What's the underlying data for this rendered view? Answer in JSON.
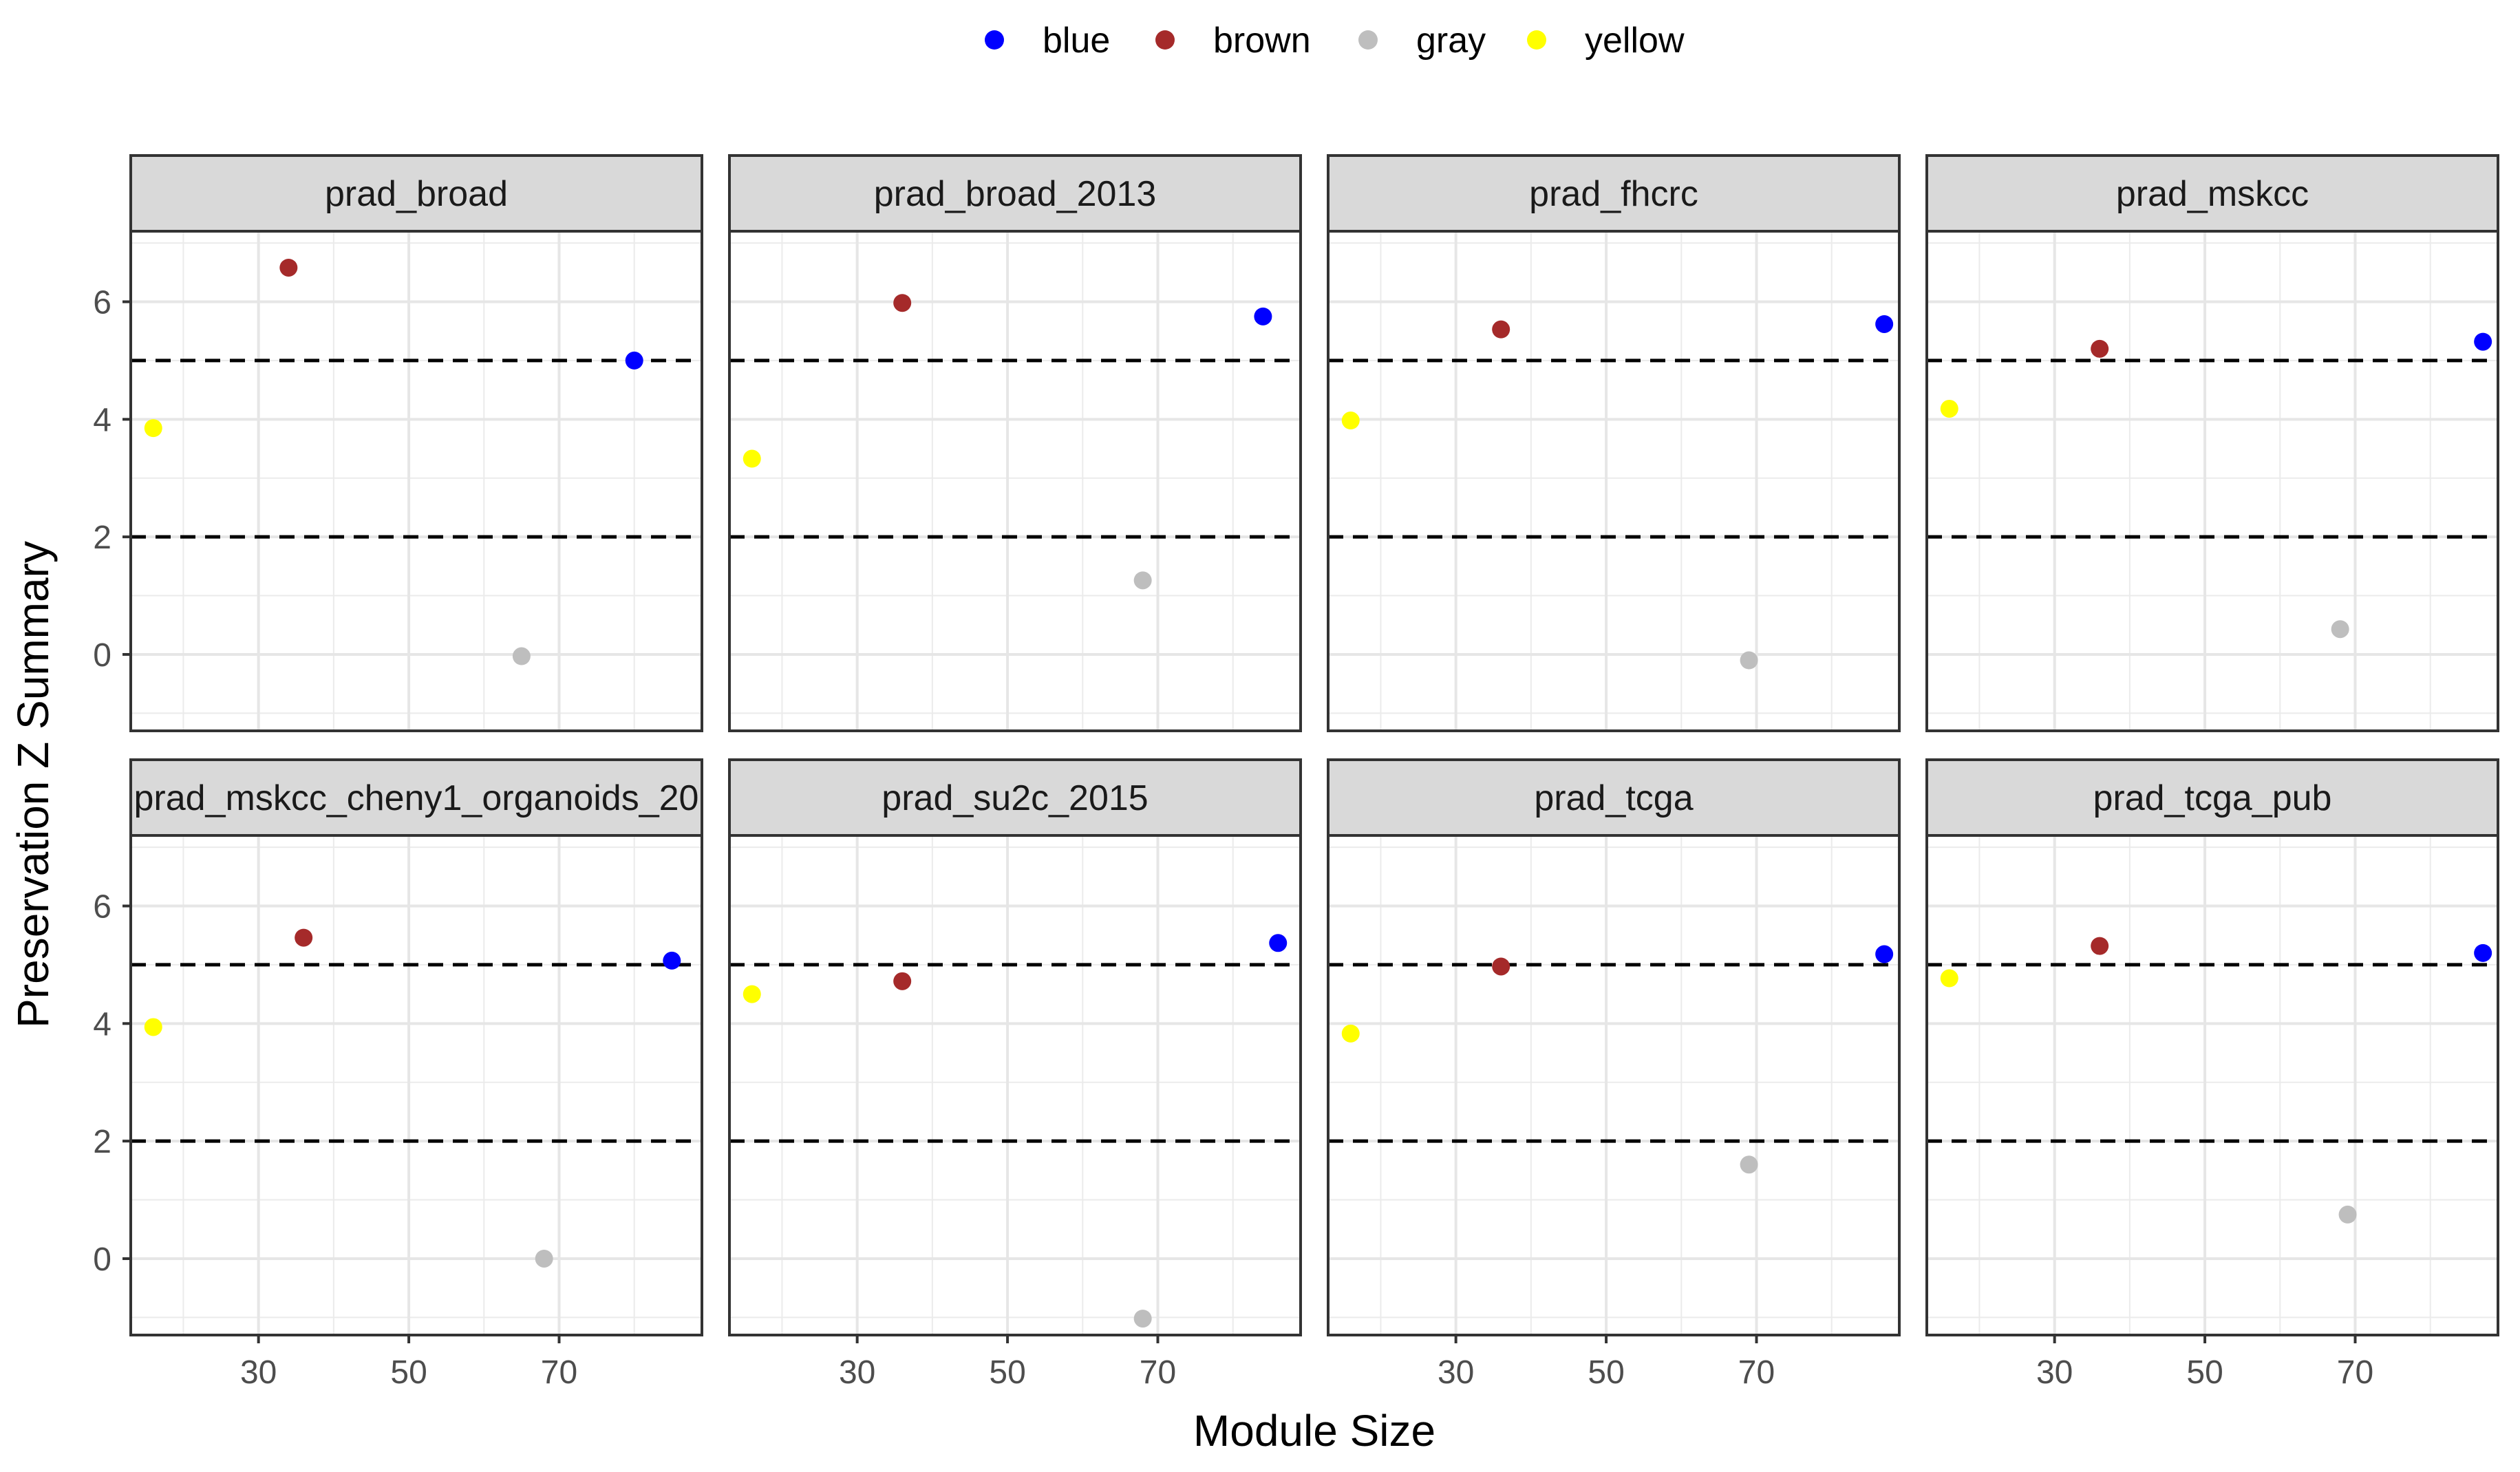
{
  "chart_data": {
    "type": "scatter",
    "facets": [
      "prad_broad",
      "prad_broad_2013",
      "prad_fhcrc",
      "prad_mskcc",
      "prad_mskcc_cheny1_organoids_20",
      "prad_su2c_2015",
      "prad_tcga",
      "prad_tcga_pub"
    ],
    "xlabel": "Module Size",
    "ylabel": "Preservation Z Summary",
    "xlim": [
      13,
      89
    ],
    "ylim": [
      -1.3,
      7.2
    ],
    "x_ticks": [
      30,
      50,
      70
    ],
    "y_ticks": [
      0,
      2,
      4,
      6
    ],
    "reference_lines": [
      2,
      5
    ],
    "legend_position": "top",
    "series": [
      {
        "name": "blue",
        "color": "#0000ff",
        "x": [
          80,
          84,
          87,
          87,
          85,
          86,
          87,
          87
        ],
        "y": [
          5.0,
          5.75,
          5.62,
          5.32,
          5.07,
          5.37,
          5.18,
          5.2
        ]
      },
      {
        "name": "brown",
        "color": "#a52a2a",
        "x": [
          34,
          36,
          36,
          36,
          36,
          36,
          36,
          36
        ],
        "y": [
          6.58,
          5.98,
          5.53,
          5.2,
          5.46,
          4.72,
          4.97,
          5.32
        ]
      },
      {
        "name": "gray",
        "color": "#bebebe",
        "x": [
          65,
          68,
          69,
          68,
          68,
          68,
          69,
          69
        ],
        "y": [
          -0.03,
          1.26,
          -0.1,
          0.43,
          0.0,
          -1.02,
          1.6,
          0.75
        ]
      },
      {
        "name": "yellow",
        "color": "#ffff00",
        "x": [
          16,
          16,
          16,
          16,
          16,
          16,
          16,
          16
        ],
        "y": [
          3.85,
          3.33,
          3.98,
          4.18,
          3.94,
          4.5,
          3.83,
          4.77
        ]
      }
    ]
  }
}
